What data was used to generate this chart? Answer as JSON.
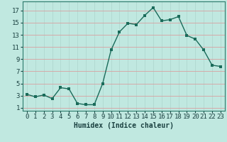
{
  "x": [
    0,
    1,
    2,
    3,
    4,
    5,
    6,
    7,
    8,
    9,
    10,
    11,
    12,
    13,
    14,
    15,
    16,
    17,
    18,
    19,
    20,
    21,
    22,
    23
  ],
  "y": [
    3.2,
    2.8,
    3.1,
    2.5,
    4.3,
    4.1,
    1.7,
    1.5,
    1.5,
    5.0,
    10.5,
    13.5,
    14.9,
    14.7,
    16.2,
    17.5,
    15.3,
    15.5,
    16.0,
    12.9,
    12.3,
    10.5,
    8.0,
    7.8
  ],
  "line_color": "#1a6b5a",
  "marker_color": "#1a6b5a",
  "bg_color": "#c0e8e0",
  "grid_color_h": "#d8a0a0",
  "grid_color_v": "#b0d8d0",
  "xlabel": "Humidex (Indice chaleur)",
  "xlim": [
    -0.5,
    23.5
  ],
  "ylim": [
    0.5,
    18.5
  ],
  "yticks": [
    1,
    3,
    5,
    7,
    9,
    11,
    13,
    15,
    17
  ],
  "xticks": [
    0,
    1,
    2,
    3,
    4,
    5,
    6,
    7,
    8,
    9,
    10,
    11,
    12,
    13,
    14,
    15,
    16,
    17,
    18,
    19,
    20,
    21,
    22,
    23
  ],
  "xlabel_fontsize": 7,
  "tick_fontsize": 6.5,
  "marker_size": 2.5,
  "line_width": 1.0
}
